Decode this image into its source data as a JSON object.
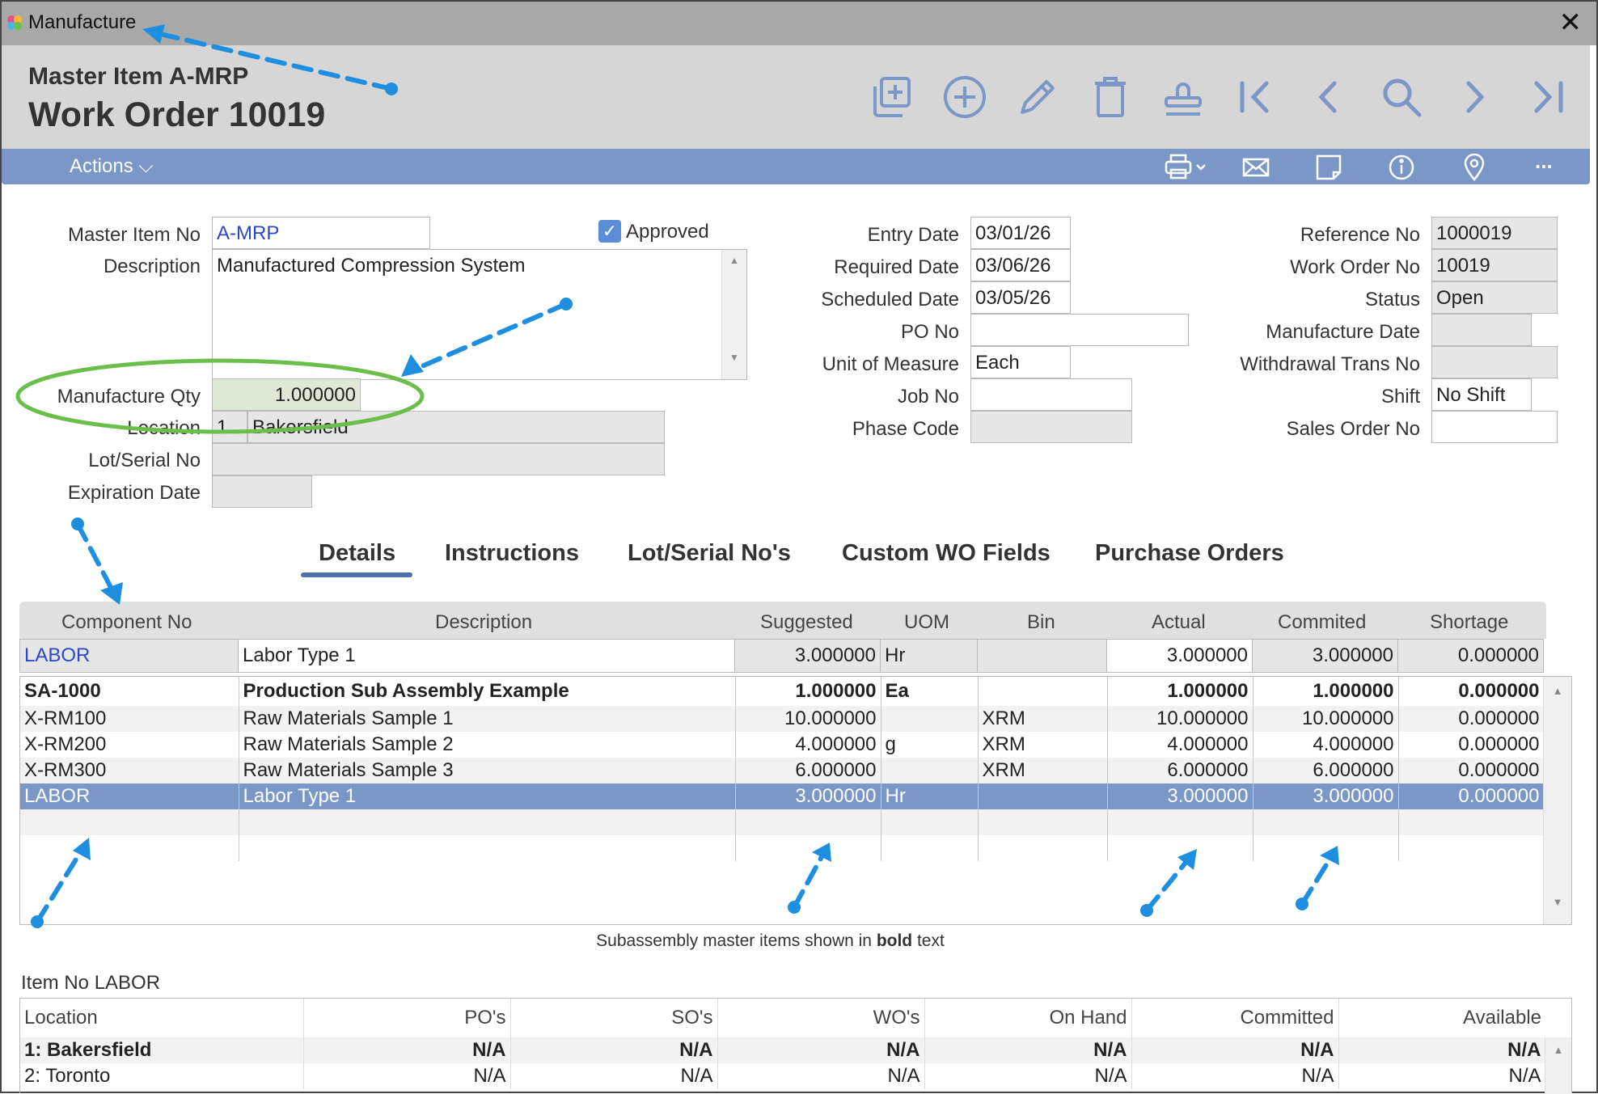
{
  "window": {
    "title": "Manufacture",
    "close_label": "✕"
  },
  "header": {
    "subtitle": "Master Item A-MRP",
    "title": "Work Order 10019"
  },
  "toolbar": {
    "icons": [
      "copy-icon",
      "add-icon",
      "edit-icon",
      "delete-icon",
      "approve-stamp-icon",
      "first-record-icon",
      "previous-record-icon",
      "search-icon",
      "next-record-icon",
      "last-record-icon"
    ]
  },
  "actionbar": {
    "actions_label": "Actions ⌵",
    "icons": [
      "print-icon",
      "email-icon",
      "note-icon",
      "info-icon",
      "location-icon",
      "more-icon"
    ],
    "more_label": "..."
  },
  "form": {
    "master_item_no": {
      "label": "Master Item No",
      "value": "A-MRP"
    },
    "approved": {
      "label": "Approved",
      "checked": true
    },
    "description": {
      "label": "Description",
      "value": "Manufactured Compression System"
    },
    "manufacture_qty": {
      "label": "Manufacture Qty",
      "value": "1.000000"
    },
    "location": {
      "label": "Location",
      "code": "1",
      "name": "Bakersfield"
    },
    "lot_serial_no": {
      "label": "Lot/Serial No",
      "value": ""
    },
    "expiration_date": {
      "label": "Expiration Date",
      "value": ""
    },
    "entry_date": {
      "label": "Entry Date",
      "value": "03/01/26"
    },
    "required_date": {
      "label": "Required Date",
      "value": "03/06/26"
    },
    "scheduled_date": {
      "label": "Scheduled Date",
      "value": "03/05/26"
    },
    "po_no": {
      "label": "PO No",
      "value": ""
    },
    "unit_of_measure": {
      "label": "Unit of Measure",
      "value": "Each"
    },
    "job_no": {
      "label": "Job No",
      "value": ""
    },
    "phase_code": {
      "label": "Phase Code",
      "value": ""
    },
    "reference_no": {
      "label": "Reference No",
      "value": "1000019"
    },
    "work_order_no": {
      "label": "Work Order No",
      "value": "10019"
    },
    "status": {
      "label": "Status",
      "value": "Open"
    },
    "manufacture_date": {
      "label": "Manufacture Date",
      "value": ""
    },
    "withdrawal_trans_no": {
      "label": "Withdrawal Trans No",
      "value": ""
    },
    "shift": {
      "label": "Shift",
      "value": "No Shift"
    },
    "sales_order_no": {
      "label": "Sales Order No",
      "value": ""
    }
  },
  "tabs": [
    {
      "label": "Details",
      "active": true
    },
    {
      "label": "Instructions"
    },
    {
      "label": "Lot/Serial No's"
    },
    {
      "label": "Custom WO Fields"
    },
    {
      "label": "Purchase Orders"
    }
  ],
  "components": {
    "columns": [
      "Component No",
      "Description",
      "Suggested",
      "UOM",
      "Bin",
      "Actual",
      "Commited",
      "Shortage"
    ],
    "edit_row": [
      "LABOR",
      "Labor Type 1",
      "3.000000",
      "Hr",
      "",
      "3.000000",
      "3.000000",
      "0.000000"
    ],
    "rows": [
      {
        "cells": [
          "SA-1000",
          "Production Sub Assembly Example",
          "1.000000",
          "Ea",
          "",
          "1.000000",
          "1.000000",
          "0.000000"
        ],
        "bold": true
      },
      {
        "cells": [
          "X-RM100",
          "Raw Materials Sample 1",
          "10.000000",
          "",
          "XRM",
          "10.000000",
          "10.000000",
          "0.000000"
        ]
      },
      {
        "cells": [
          "X-RM200",
          "Raw Materials Sample 2",
          "4.000000",
          "g",
          "XRM",
          "4.000000",
          "4.000000",
          "0.000000"
        ]
      },
      {
        "cells": [
          "X-RM300",
          "Raw Materials Sample 3",
          "6.000000",
          "",
          "XRM",
          "6.000000",
          "6.000000",
          "0.000000"
        ]
      },
      {
        "cells": [
          "LABOR",
          "Labor Type 1",
          "3.000000",
          "Hr",
          "",
          "3.000000",
          "3.000000",
          "0.000000"
        ],
        "selected": true
      }
    ],
    "note_prefix": "Subassembly master items shown in ",
    "note_bold": "bold",
    "note_suffix": " text"
  },
  "inventory": {
    "title": "Item No LABOR",
    "columns": [
      "Location",
      "PO's",
      "SO's",
      "WO's",
      "On Hand",
      "Committed",
      "Available"
    ],
    "rows": [
      {
        "cells": [
          "1: Bakersfield",
          "N/A",
          "N/A",
          "N/A",
          "N/A",
          "N/A",
          "N/A"
        ],
        "bold": true
      },
      {
        "cells": [
          "2: Toronto",
          "N/A",
          "N/A",
          "N/A",
          "N/A",
          "N/A",
          "N/A"
        ]
      }
    ]
  },
  "colors": {
    "accent": "#7a97c8",
    "highlight_ellipse": "#6abf4b",
    "annotation_arrow": "#1e8fe0"
  }
}
